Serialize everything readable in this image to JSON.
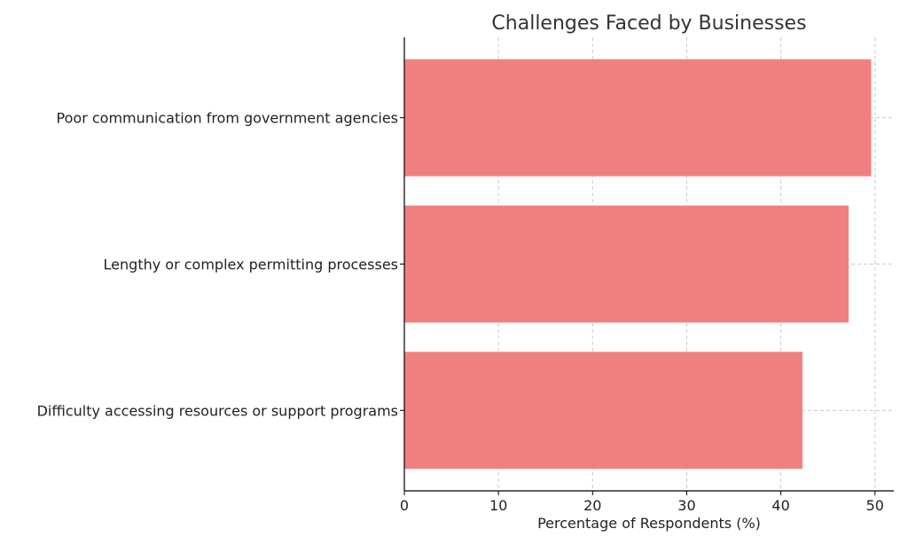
{
  "chart_data": {
    "type": "bar",
    "orientation": "horizontal",
    "title": "Challenges Faced by Businesses",
    "xlabel": "Percentage of Respondents (%)",
    "ylabel": "",
    "categories": [
      "Difficulty accessing resources or support programs",
      "Lengthy or complex permitting processes",
      "Poor communication from government agencies"
    ],
    "values": [
      42.3,
      47.2,
      49.6
    ],
    "xlim": [
      0,
      52
    ],
    "xticks": [
      0,
      10,
      20,
      30,
      40,
      50
    ],
    "grid": true,
    "bar_color": "#f08080"
  }
}
